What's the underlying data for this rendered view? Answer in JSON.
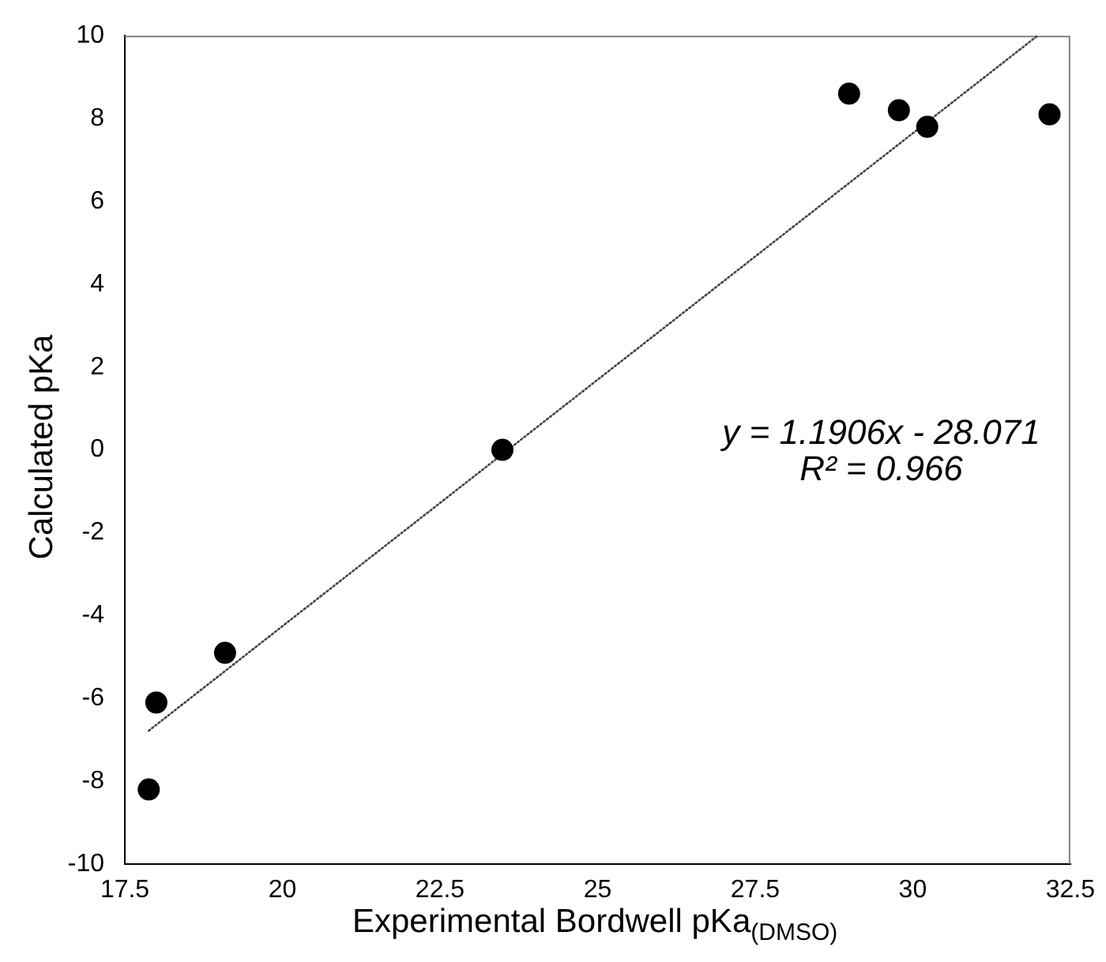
{
  "chart_data": {
    "type": "scatter",
    "xlabel": "Experimental Bordwell pKa$_{(DMSO)}$",
    "ylabel": "Calculated pKa",
    "xlim": [
      17.5,
      32.5
    ],
    "xticks": [
      17.5,
      20,
      22.5,
      25,
      27.5,
      30,
      32.5
    ],
    "ylim": [
      -10,
      10
    ],
    "yticks": [
      -10,
      -8,
      -6,
      -4,
      -2,
      0,
      2,
      4,
      6,
      8,
      10
    ],
    "grid": false,
    "legend": false,
    "marker": "circle",
    "series": [
      {
        "type": "scatter",
        "color": "#000000",
        "x": [
          17.88,
          18.0,
          19.09,
          23.49,
          28.99,
          29.78,
          30.23,
          32.17
        ],
        "values": [
          -8.2,
          -6.1,
          -4.9,
          0.0,
          8.6,
          8.2,
          7.8,
          8.1
        ]
      },
      {
        "type": "line",
        "color": "#444444",
        "line_style": "dotted",
        "marker": "none",
        "x": [
          17.88,
          31.98
        ],
        "values": [
          -6.78,
          10
        ]
      }
    ],
    "annotations": [
      "y = 1.1906x - 28.071",
      "R² = 0.966"
    ]
  }
}
